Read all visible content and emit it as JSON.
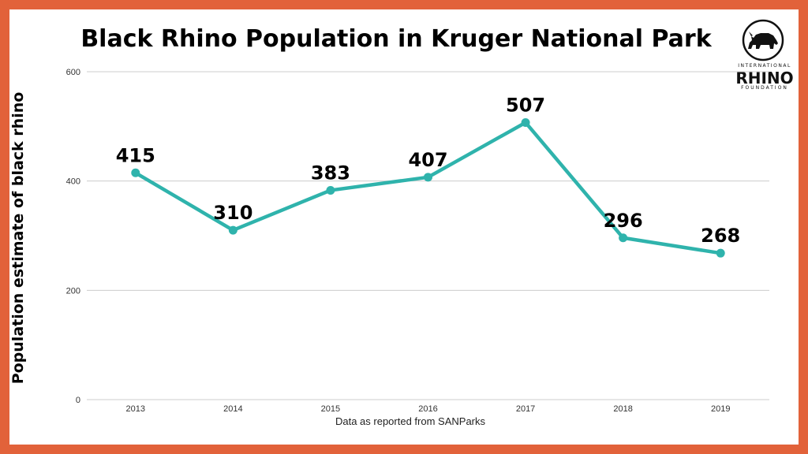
{
  "title": "Black Rhino Population in Kruger National Park",
  "logo": {
    "top_text": "INTERNATIONAL",
    "main_text": "RHINO",
    "bottom_text": "FOUNDATION"
  },
  "colors": {
    "border": "#e2623a",
    "line": "#2fb3ac",
    "grid": "#cccccc"
  },
  "chart_data": {
    "type": "line",
    "title": "Black Rhino Population in Kruger National Park",
    "xlabel": "Data as reported from SANParks",
    "ylabel": "Population estimate of black rhino",
    "categories": [
      "2013",
      "2014",
      "2015",
      "2016",
      "2017",
      "2018",
      "2019"
    ],
    "series": [
      {
        "values": [
          415,
          310,
          383,
          407,
          507,
          296,
          268
        ]
      }
    ],
    "ylim": [
      0,
      600
    ],
    "yticks": [
      0,
      200,
      400,
      600
    ],
    "grid": true,
    "data_labels": true
  }
}
